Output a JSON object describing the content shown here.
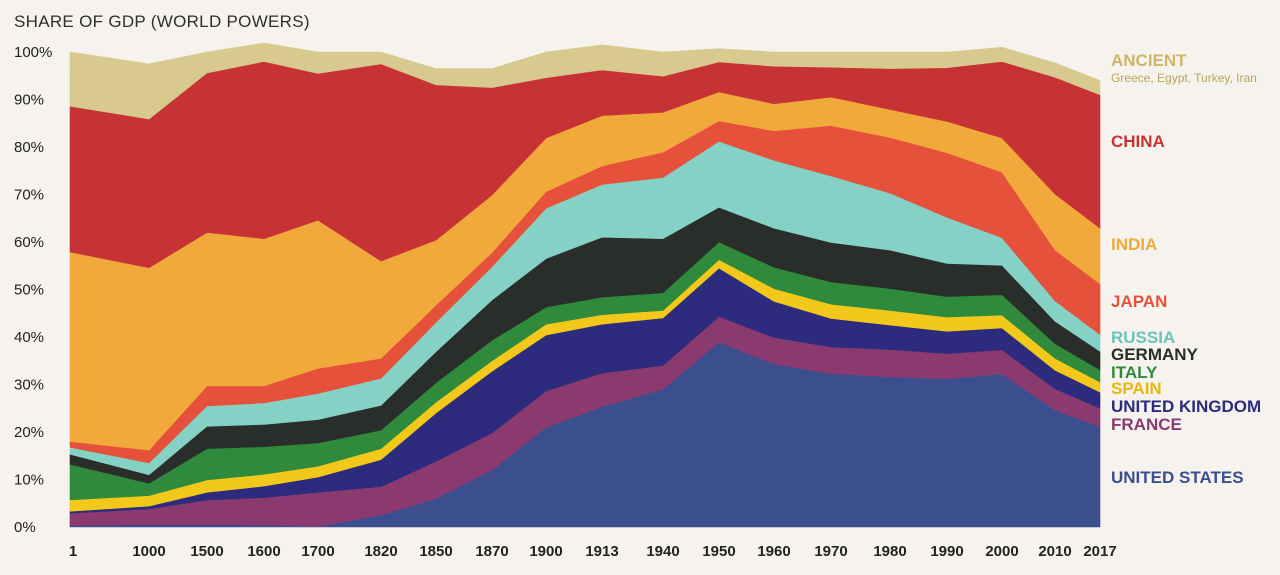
{
  "chart_data": {
    "type": "area",
    "stacked": true,
    "normalized": true,
    "title": "SHARE OF GDP (WORLD POWERS)",
    "ylim": [
      0,
      100
    ],
    "y_ticks": [
      "0%",
      "10%",
      "20%",
      "30%",
      "40%",
      "50%",
      "60%",
      "70%",
      "80%",
      "90%",
      "100%"
    ],
    "categories": [
      "1",
      "1000",
      "1500",
      "1600",
      "1700",
      "1820",
      "1850",
      "1870",
      "1900",
      "1913",
      "1940",
      "1950",
      "1960",
      "1970",
      "1980",
      "1990",
      "2000",
      "2010",
      "2017"
    ],
    "grid": false,
    "legend": "right, labels aligned with bands",
    "series": [
      {
        "name": "UNITED STATES",
        "color": "#3b4f8f",
        "values": [
          0.3,
          0.5,
          0.5,
          0.4,
          0.1,
          2.5,
          6,
          12,
          21,
          25.3,
          29,
          38.9,
          34.3,
          32.3,
          31.6,
          31.2,
          32.2,
          24.6,
          21.1
        ]
      },
      {
        "name": "FRANCE",
        "color": "#8a3a6e",
        "values": [
          2.6,
          3.3,
          5.2,
          5.8,
          7.2,
          6,
          7.8,
          7.8,
          7.6,
          7.1,
          5,
          5.4,
          5.6,
          5.6,
          5.8,
          5.3,
          5.1,
          4.5,
          3.9
        ]
      },
      {
        "name": "UNITED KINGDOM",
        "color": "#2c2b7e",
        "values": [
          0.4,
          0.6,
          1.6,
          2.4,
          3.2,
          5.7,
          10.2,
          13,
          11.8,
          10.3,
          10,
          10.2,
          7.6,
          6,
          5.1,
          4.7,
          4.6,
          3.9,
          3.4
        ]
      },
      {
        "name": "SPAIN",
        "color": "#f2c81a",
        "values": [
          2.4,
          2.2,
          2.6,
          2.5,
          2.3,
          2.3,
          2.3,
          2.2,
          2.3,
          2,
          1.6,
          1.8,
          2.7,
          3,
          3.1,
          3,
          2.7,
          2.5,
          2.1
        ]
      },
      {
        "name": "ITALY",
        "color": "#2f8a3c",
        "values": [
          7.5,
          2.6,
          6.6,
          5.8,
          4.9,
          3.9,
          4.1,
          4.3,
          3.6,
          3.7,
          3.7,
          3.7,
          4.5,
          4.7,
          4.6,
          4.3,
          4.3,
          3.1,
          2.6
        ]
      },
      {
        "name": "GERMANY",
        "color": "#2a2e2b",
        "values": [
          2.1,
          1.8,
          4.7,
          4.7,
          4.9,
          5.2,
          6.5,
          8.5,
          10.2,
          12.6,
          11.4,
          7.3,
          8.2,
          8.3,
          8.1,
          7,
          6.2,
          4.7,
          3.9
        ]
      },
      {
        "name": "RUSSIA",
        "color": "#86d1c6",
        "values": [
          1.5,
          2.5,
          4.3,
          4.5,
          5.5,
          5.7,
          6.2,
          7,
          10.6,
          11.1,
          12.9,
          13.9,
          14.3,
          14,
          12,
          9.7,
          5.8,
          4.3,
          3.5
        ]
      },
      {
        "name": "JAPAN",
        "color": "#e5513a",
        "values": [
          1.2,
          2.7,
          4.2,
          3.6,
          5.3,
          4.2,
          3.6,
          3,
          3.5,
          3.9,
          5.3,
          4.3,
          6.2,
          10.6,
          11.7,
          13.6,
          13.8,
          10.7,
          10.7
        ]
      },
      {
        "name": "INDIA",
        "color": "#f0a93a",
        "values": [
          39.9,
          38.4,
          32.3,
          31,
          31.2,
          20.5,
          13.7,
          12.1,
          11.3,
          10.6,
          8.4,
          6.1,
          5.7,
          6,
          5.9,
          6.6,
          7.2,
          11.8,
          11.7
        ]
      },
      {
        "name": "CHINA",
        "color": "#c73335",
        "values": [
          30.7,
          31.3,
          33.6,
          37.3,
          30.9,
          41.5,
          32.7,
          22.6,
          12.7,
          9.6,
          7.6,
          6.3,
          7.9,
          6.3,
          8.6,
          11.3,
          16.1,
          24.6,
          28.1
        ]
      },
      {
        "name": "ANCIENT",
        "color": "#d8c98e",
        "values": [
          11.4,
          11.6,
          4.4,
          3.9,
          4.5,
          2.5,
          3.4,
          4,
          5.4,
          5.3,
          5.1,
          2.8,
          3,
          3.2,
          3.5,
          3.3,
          3,
          3,
          3
        ]
      }
    ],
    "ancient_subtitle": "Greece, Egypt, Turkey, Iran"
  }
}
